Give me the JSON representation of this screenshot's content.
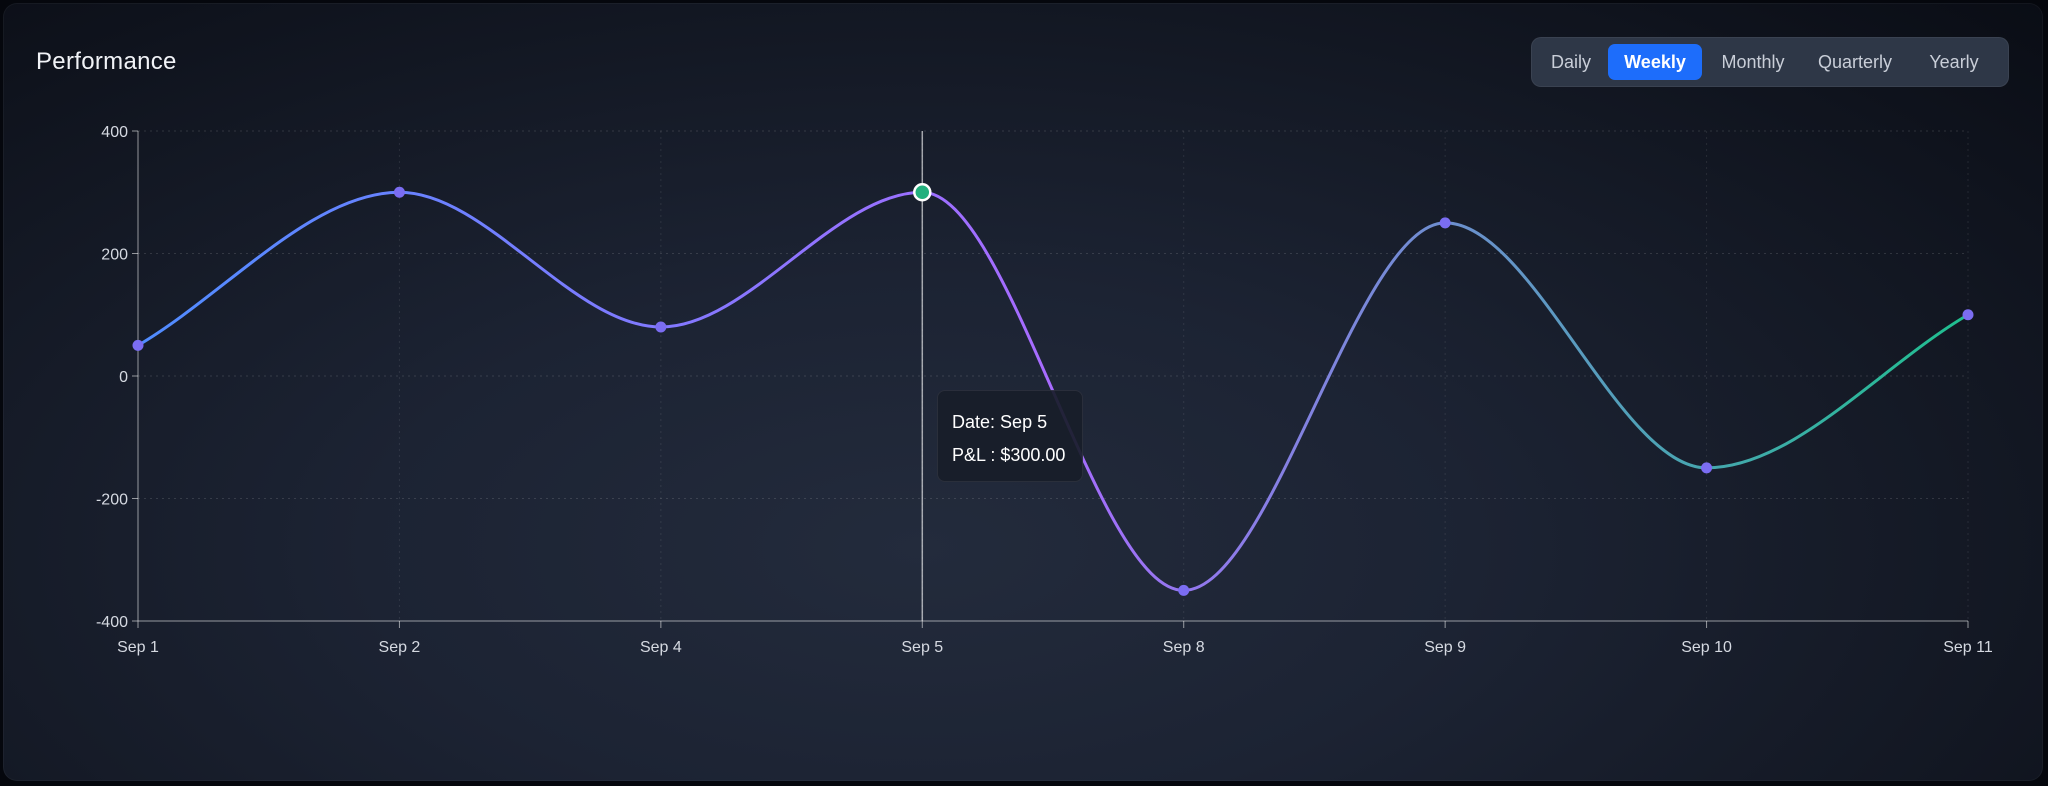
{
  "header": {
    "title": "Performance"
  },
  "period_switch": {
    "options": [
      {
        "label": "Daily",
        "active": false
      },
      {
        "label": "Weekly",
        "active": true
      },
      {
        "label": "Monthly",
        "active": false
      },
      {
        "label": "Quarterly",
        "active": false
      },
      {
        "label": "Yearly",
        "active": false
      }
    ]
  },
  "tooltip": {
    "date_label": "Date:",
    "date_value": "Sep 5",
    "value_label": "P&L :",
    "value_value": "$300.00"
  },
  "colors": {
    "line_start": "#4f8cff",
    "line_mid": "#a86bff",
    "line_end": "#1fbf8f",
    "point": "#7b6df2",
    "highlight_point": "#22b07d",
    "accent": "#1d6dfb"
  },
  "chart_data": {
    "type": "line",
    "title": "Performance",
    "xlabel": "",
    "ylabel": "",
    "categories": [
      "Sep 1",
      "Sep 2",
      "Sep 4",
      "Sep 5",
      "Sep 8",
      "Sep 9",
      "Sep 10",
      "Sep 11"
    ],
    "series": [
      {
        "values": [
          50,
          300,
          80,
          300,
          -350,
          250,
          -150,
          100
        ]
      }
    ],
    "ylim": [
      -400,
      400
    ],
    "yticks": [
      400,
      200,
      0,
      -200,
      -400
    ],
    "highlight_index": 3,
    "grid": true,
    "smooth": true
  }
}
